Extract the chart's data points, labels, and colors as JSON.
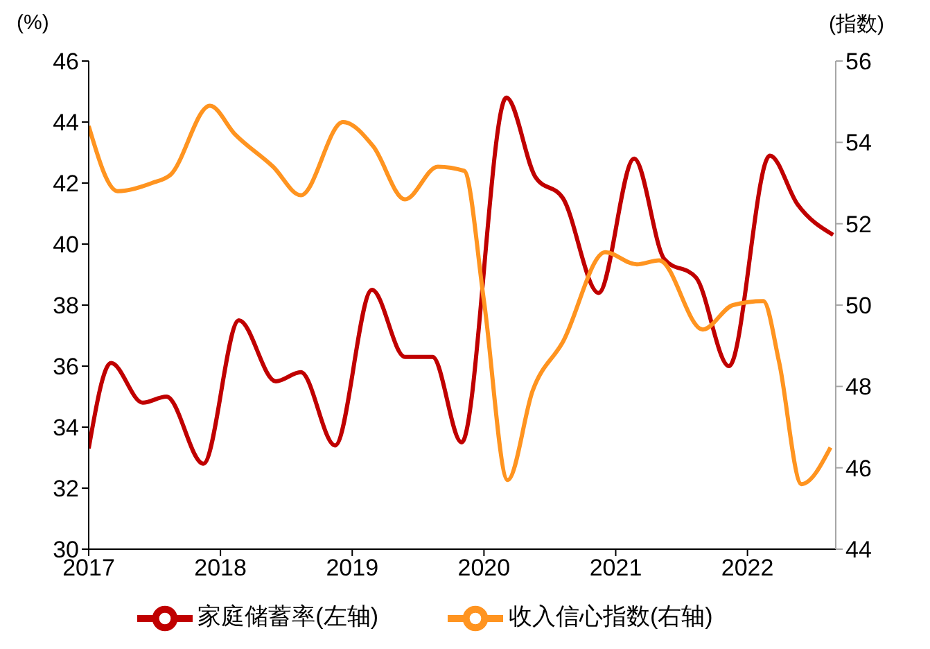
{
  "chart_data": {
    "type": "line",
    "ylabel": "(%)",
    "y2label": "(指数)",
    "xlim": [
      2017,
      2022.67
    ],
    "xticks": [
      2017,
      2018,
      2019,
      2020,
      2021,
      2022
    ],
    "ylim": [
      30,
      46
    ],
    "yticks": [
      30,
      32,
      34,
      36,
      38,
      40,
      42,
      44,
      46
    ],
    "y2lim": [
      44,
      56
    ],
    "y2ticks": [
      44,
      46,
      48,
      50,
      52,
      54,
      56
    ],
    "grid": false,
    "legend": "bottom",
    "marker": "none",
    "line_style": "solid",
    "series": [
      {
        "name": "家庭储蓄率(左轴)",
        "color": "#c00000",
        "x": [
          2017.0,
          2017.17,
          2017.41,
          2017.59,
          2017.87,
          2018.14,
          2018.42,
          2018.61,
          2018.87,
          2019.15,
          2019.4,
          2019.61,
          2019.83,
          2020.17,
          2020.39,
          2020.6,
          2020.87,
          2021.14,
          2021.37,
          2021.61,
          2021.86,
          2022.17,
          2022.38,
          2022.65
        ],
        "values": [
          33.3,
          36.1,
          34.8,
          35.0,
          32.8,
          37.5,
          35.5,
          35.8,
          33.4,
          38.5,
          36.3,
          36.3,
          33.5,
          44.8,
          42.2,
          41.5,
          38.4,
          42.8,
          39.5,
          38.9,
          36.0,
          42.9,
          41.3,
          40.3
        ]
      },
      {
        "name": "收入信心指数(右轴)",
        "color": "#ff9420",
        "axis": "y2",
        "x": [
          2017.0,
          2017.22,
          2017.48,
          2017.62,
          2017.92,
          2018.11,
          2018.4,
          2018.61,
          2018.93,
          2019.16,
          2019.4,
          2019.65,
          2019.85,
          2020.0,
          2020.18,
          2020.37,
          2020.6,
          2020.92,
          2021.16,
          2021.33,
          2021.66,
          2021.89,
          2022.12,
          2022.24,
          2022.41,
          2022.63
        ],
        "values": [
          54.4,
          52.8,
          53.0,
          53.2,
          54.9,
          54.2,
          53.4,
          52.7,
          54.5,
          53.9,
          52.6,
          53.4,
          53.3,
          50.1,
          45.7,
          47.9,
          49.1,
          51.3,
          51.0,
          51.1,
          49.4,
          50.0,
          50.1,
          48.6,
          45.6,
          46.5
        ]
      }
    ]
  }
}
